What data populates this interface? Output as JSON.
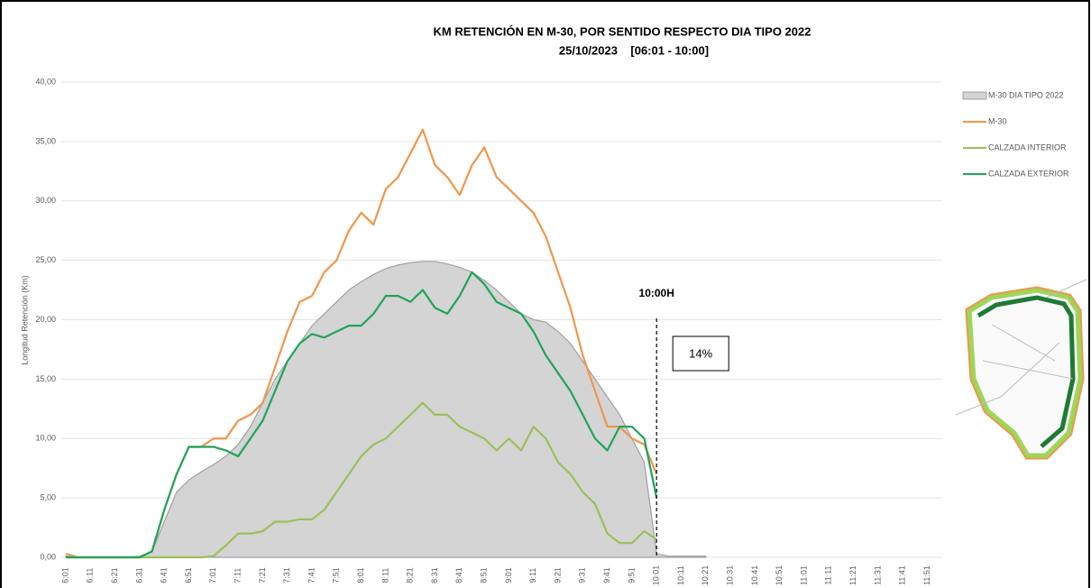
{
  "chart_data": {
    "type": "line",
    "title": "KM RETENCIÓN EN M-30, POR SENTIDO RESPECTO DIA TIPO 2022",
    "subtitle": "25/10/2023    [06:01 - 10:00]",
    "y_label": "Longitud Retención (Km)",
    "annotations": [
      "10:00H",
      "14%"
    ],
    "categories": [
      "6:01",
      null,
      "6:11",
      null,
      "6:21",
      null,
      "6:31",
      null,
      "6:41",
      null,
      "6:51",
      null,
      "7:01",
      null,
      "7:11",
      null,
      "7:21",
      null,
      "7:31",
      null,
      "7:41",
      null,
      "7:51",
      null,
      "8:01",
      null,
      "8:11",
      null,
      "8:21",
      null,
      "8:31",
      null,
      "8:41",
      null,
      "8:51",
      null,
      "9:01",
      null,
      "9:11",
      null,
      "9:21",
      null,
      "9:31",
      null,
      "9:41",
      null,
      "9:51",
      null,
      "10:01",
      null,
      "10:11",
      null,
      "10:21",
      null,
      "10:31",
      null,
      "10:41",
      null,
      "10:51",
      null,
      "11:01",
      null,
      "11:11",
      null,
      "11:21",
      null,
      "11:31",
      null,
      "11:41",
      null,
      "11:51",
      null
    ],
    "series": [
      {
        "name": "M-30 DIA TIPO 2022",
        "type": "area",
        "color": "#d4d4d4",
        "values": [
          0.1,
          0,
          0,
          0,
          0,
          0,
          0.1,
          0.5,
          3,
          5.5,
          6.5,
          7.2,
          7.8,
          8.5,
          9.5,
          11,
          13,
          15,
          16.5,
          18,
          19.5,
          20.5,
          21.5,
          22.5,
          23.2,
          23.8,
          24.3,
          24.6,
          24.8,
          24.9,
          24.9,
          24.7,
          24.4,
          24,
          23.3,
          22.5,
          21.5,
          20.5,
          20,
          19.8,
          19,
          18,
          16.5,
          15,
          13.5,
          12,
          10,
          8,
          0.3,
          0.1,
          0.1,
          0.1,
          0.1,
          null,
          null,
          null,
          null,
          null,
          null,
          null,
          null,
          null,
          null,
          null,
          null,
          null,
          null,
          null,
          null,
          null,
          null,
          null
        ]
      },
      {
        "name": "M-30",
        "color": "#f0964a",
        "values": [
          0.3,
          0,
          0,
          0,
          0,
          0,
          0,
          0.5,
          4,
          7,
          9.3,
          9.3,
          10,
          10,
          11.5,
          12,
          13,
          16,
          19,
          21.5,
          22,
          24,
          25,
          27.5,
          29,
          28,
          31,
          32,
          34,
          36,
          33,
          32,
          30.5,
          33,
          34.5,
          32,
          31,
          30,
          29,
          27,
          24,
          21,
          17,
          14,
          11,
          11,
          10,
          9.5,
          7,
          null,
          null,
          null,
          null,
          null,
          null,
          null,
          null,
          null,
          null,
          null,
          null,
          null,
          null,
          null,
          null,
          null,
          null,
          null,
          null,
          null,
          null,
          null
        ]
      },
      {
        "name": "CALZADA INTERIOR",
        "color": "#9cbf5a",
        "values": [
          0,
          0,
          0,
          0,
          0,
          0,
          0,
          0,
          0,
          0,
          0,
          0,
          0.1,
          1,
          2,
          2,
          2.2,
          3,
          3,
          3.2,
          3.2,
          4,
          5.5,
          7,
          8.5,
          9.5,
          10,
          11,
          12,
          13,
          12,
          12,
          11,
          10.5,
          10,
          9,
          10,
          9,
          11,
          10,
          8,
          7,
          5.5,
          4.5,
          2,
          1.2,
          1.2,
          2.2,
          1.5,
          null,
          null,
          null,
          null,
          null,
          null,
          null,
          null,
          null,
          null,
          null,
          null,
          null,
          null,
          null,
          null,
          null,
          null,
          null,
          null,
          null,
          null,
          null
        ]
      },
      {
        "name": "CALZADA EXTERIOR",
        "color": "#1fa45a",
        "values": [
          0,
          0,
          0,
          0,
          0,
          0,
          0,
          0.5,
          4,
          7,
          9.3,
          9.3,
          9.3,
          9,
          8.5,
          10,
          11.5,
          14,
          16.5,
          18,
          18.8,
          18.5,
          19,
          19.5,
          19.5,
          20.5,
          22,
          22,
          21.5,
          22.5,
          21,
          20.5,
          22,
          24,
          23,
          21.5,
          21,
          20.5,
          19,
          17,
          15.5,
          14,
          12,
          10,
          9,
          11,
          11,
          10,
          5,
          null,
          null,
          null,
          null,
          null,
          null,
          null,
          null,
          null,
          null,
          null,
          null,
          null,
          null,
          null,
          null,
          null,
          null,
          null,
          null,
          null,
          null,
          null
        ]
      }
    ],
    "ylim": [
      0,
      40
    ],
    "yticks": [
      {
        "value": 0,
        "label": "0,00"
      },
      {
        "value": 5,
        "label": "5,00"
      },
      {
        "value": 10,
        "label": "10,00"
      },
      {
        "value": 15,
        "label": "15,00"
      },
      {
        "value": 20,
        "label": "20,00"
      },
      {
        "value": 25,
        "label": "25,00"
      },
      {
        "value": 30,
        "label": "30,00"
      },
      {
        "value": 35,
        "label": "35,00"
      },
      {
        "value": 40,
        "label": "40,00"
      }
    ],
    "grid": true
  }
}
